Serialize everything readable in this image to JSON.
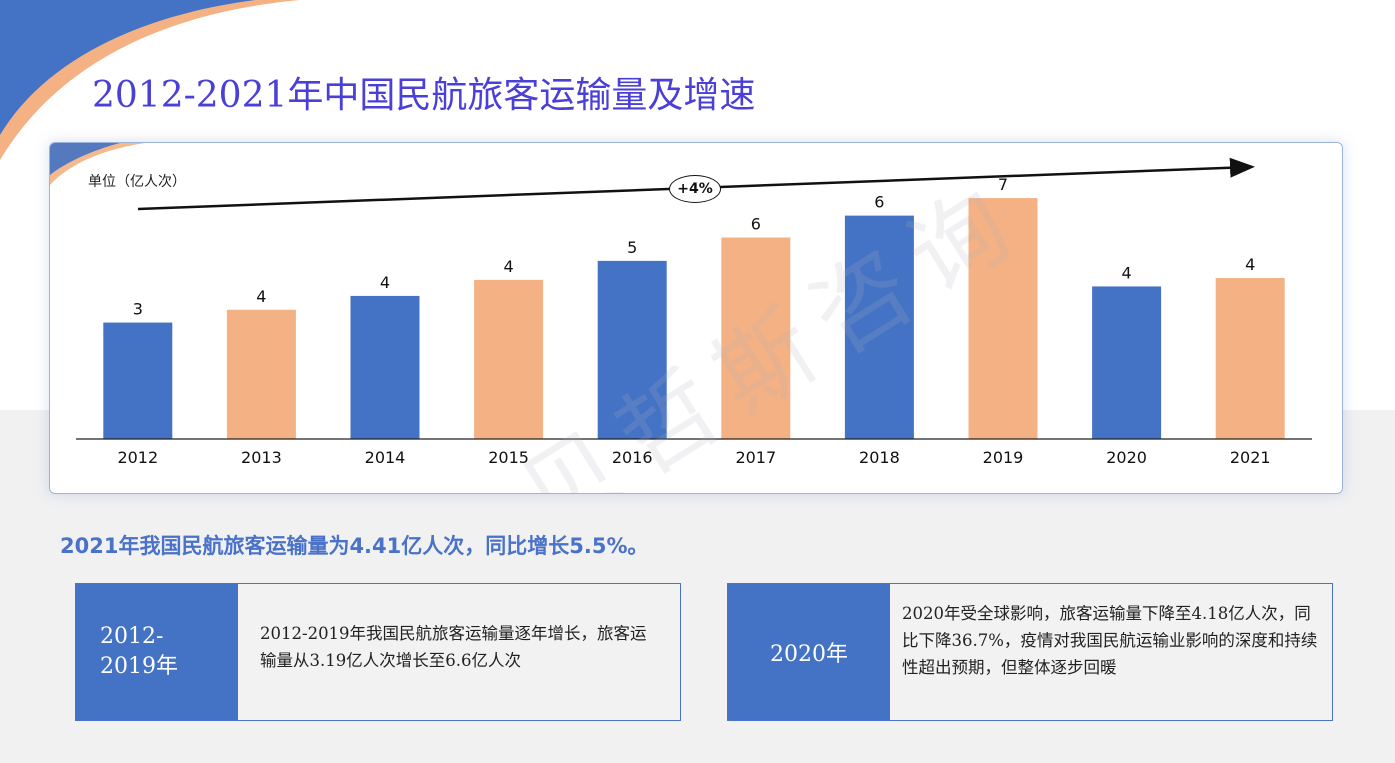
{
  "title": "2012-2021年中国民航旅客运输量及增速",
  "chart_data": {
    "type": "bar",
    "unit_label": "单位（亿人次）",
    "growth_label": "+4%",
    "categories": [
      "2012",
      "2013",
      "2014",
      "2015",
      "2016",
      "2017",
      "2018",
      "2019",
      "2020",
      "2021"
    ],
    "values": [
      3.19,
      3.54,
      3.92,
      4.36,
      4.88,
      5.52,
      6.12,
      6.6,
      4.18,
      4.41
    ],
    "data_labels": [
      "3",
      "4",
      "4",
      "4",
      "5",
      "6",
      "6",
      "7",
      "4",
      "4"
    ],
    "colors": [
      "#4472c4",
      "#f4b183",
      "#4472c4",
      "#f4b183",
      "#4472c4",
      "#f4b183",
      "#4472c4",
      "#f4b183",
      "#4472c4",
      "#f4b183"
    ],
    "ylim": [
      0,
      8
    ]
  },
  "watermark": "贝哲斯咨询",
  "summary": "2021年我国民航旅客运输量为4.41亿人次，同比增长5.5%。",
  "boxes": [
    {
      "label_line1": "2012-",
      "label_line2": "2019年",
      "text": "2012-2019年我国民航旅客运输量逐年增长，旅客运输量从3.19亿人次增长至6.6亿人次"
    },
    {
      "label": "2020年",
      "text": "2020年受全球影响，旅客运输量下降至4.18亿人次，同比下降36.7%，疫情对我国民航运输业影响的深度和持续性超出预期，但整体逐步回暖"
    }
  ],
  "colors": {
    "title": "#4a3fd6",
    "accent_blue": "#4472c4",
    "accent_orange": "#f4b183",
    "summary": "#4a72c8"
  }
}
